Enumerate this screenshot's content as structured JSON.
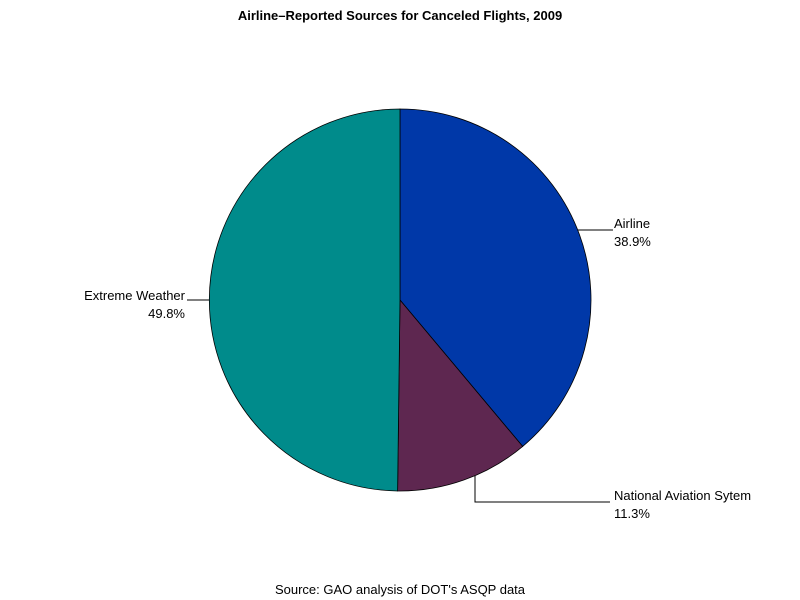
{
  "chart_data": {
    "type": "pie",
    "title": "Airline–Reported Sources for Canceled Flights, 2009",
    "slices": [
      {
        "label": "Airline",
        "value": 38.9,
        "value_label": "38.9%",
        "color": "#0038A8"
      },
      {
        "label": "National Aviation Sytem",
        "value": 11.3,
        "value_label": "11.3%",
        "color": "#5E2750"
      },
      {
        "label": "Extreme Weather",
        "value": 49.8,
        "value_label": "49.8%",
        "color": "#008B8B"
      }
    ],
    "start_angle": "12 o'clock, clockwise",
    "legend": "none",
    "source": "Source: GAO analysis of DOT's ASQP data"
  }
}
